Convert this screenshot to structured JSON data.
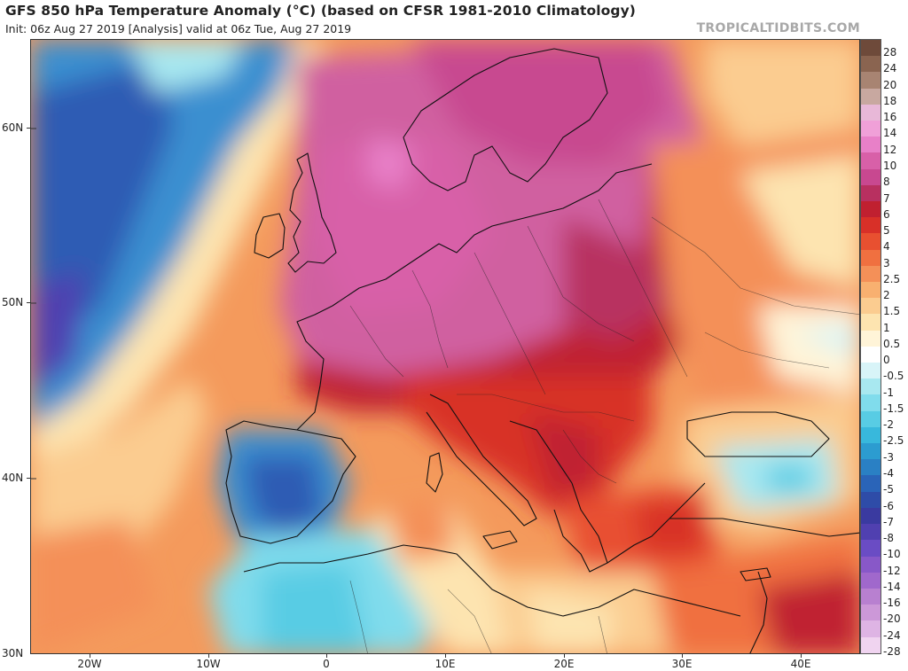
{
  "header": {
    "title": "GFS 850 hPa Temperature Anomaly (°C) (based on CFSR 1981-2010 Climatology)",
    "subtitle": "Init: 06z Aug 27 2019   [Analysis]   valid at 06z Tue, Aug 27 2019",
    "brand": "TROPICALTIDBITS.COM"
  },
  "axes": {
    "lat_labels": [
      "60N",
      "50N",
      "40N",
      "30N"
    ],
    "lon_labels": [
      "20W",
      "10W",
      "0",
      "10E",
      "20E",
      "30E",
      "40E"
    ]
  },
  "legend": {
    "levels": [
      "28",
      "24",
      "20",
      "18",
      "16",
      "14",
      "12",
      "10",
      "8",
      "7",
      "6",
      "5",
      "4",
      "3",
      "2.5",
      "2",
      "1.5",
      "1",
      "0.5",
      "0",
      "-0.5",
      "-1",
      "-1.5",
      "-2",
      "-2.5",
      "-3",
      "-4",
      "-5",
      "-6",
      "-7",
      "-8",
      "-10",
      "-12",
      "-14",
      "-16",
      "-20",
      "-24",
      "-28"
    ],
    "colors": [
      "#6e4a3a",
      "#8a6450",
      "#a88472",
      "#c8a8a0",
      "#e8b8d8",
      "#f0a0d8",
      "#e880c8",
      "#d860a8",
      "#c84890",
      "#b83060",
      "#c02030",
      "#d83028",
      "#e85030",
      "#f07040",
      "#f49058",
      "#f8b070",
      "#fbcc90",
      "#fde4b0",
      "#fff4d8",
      "#ffffff",
      "#d8f4f8",
      "#a8e8f0",
      "#80dcec",
      "#58cce4",
      "#38b8dc",
      "#2c9cd0",
      "#2a80c4",
      "#2a64b8",
      "#2e4ca8",
      "#3a3aa0",
      "#5040b0",
      "#6a4cc4",
      "#8858c8",
      "#a068cc",
      "#b880d0",
      "#cc98d8",
      "#deb4e4",
      "#f0d4f0"
    ]
  }
}
